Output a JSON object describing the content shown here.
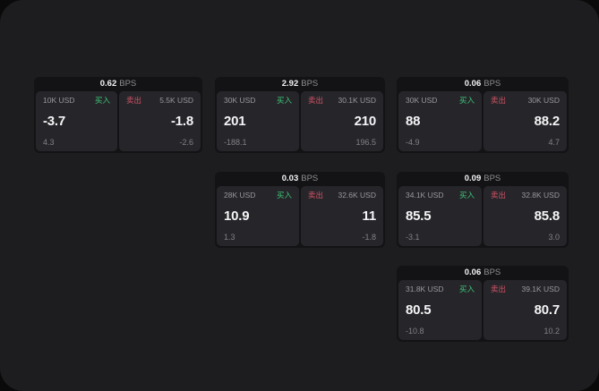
{
  "colors": {
    "page_bg": "#0a0a0b",
    "panel_bg": "#1d1d1f",
    "card_bg": "#131315",
    "pane_bg": "#26262a",
    "buy_green": "#3ec778",
    "sell_red": "#d05266",
    "value_white": "#f5f5f7",
    "label_gray": "#98989d",
    "sub_gray": "#808086"
  },
  "labels": {
    "bps_unit": "BPS",
    "buy": "买入",
    "sell": "卖出"
  },
  "cards": [
    {
      "bps": "0.62",
      "buy": {
        "amount": "10K USD",
        "value": "-3.7",
        "sub": "4.3"
      },
      "sell": {
        "amount": "5.5K USD",
        "value": "-1.8",
        "sub": "-2.6"
      }
    },
    {
      "bps": "2.92",
      "buy": {
        "amount": "30K USD",
        "value": "201",
        "sub": "-188.1"
      },
      "sell": {
        "amount": "30.1K USD",
        "value": "210",
        "sub": "196.5"
      }
    },
    {
      "bps": "0.06",
      "buy": {
        "amount": "30K USD",
        "value": "88",
        "sub": "-4.9"
      },
      "sell": {
        "amount": "30K USD",
        "value": "88.2",
        "sub": "4.7"
      }
    },
    {
      "bps": "0.03",
      "buy": {
        "amount": "28K USD",
        "value": "10.9",
        "sub": "1.3"
      },
      "sell": {
        "amount": "32.6K USD",
        "value": "11",
        "sub": "-1.8"
      }
    },
    {
      "bps": "0.09",
      "buy": {
        "amount": "34.1K USD",
        "value": "85.5",
        "sub": "-3.1"
      },
      "sell": {
        "amount": "32.8K USD",
        "value": "85.8",
        "sub": "3.0"
      }
    },
    {
      "bps": "0.06",
      "buy": {
        "amount": "31.8K USD",
        "value": "80.5",
        "sub": "-10.8"
      },
      "sell": {
        "amount": "39.1K USD",
        "value": "80.7",
        "sub": "10.2"
      }
    }
  ]
}
